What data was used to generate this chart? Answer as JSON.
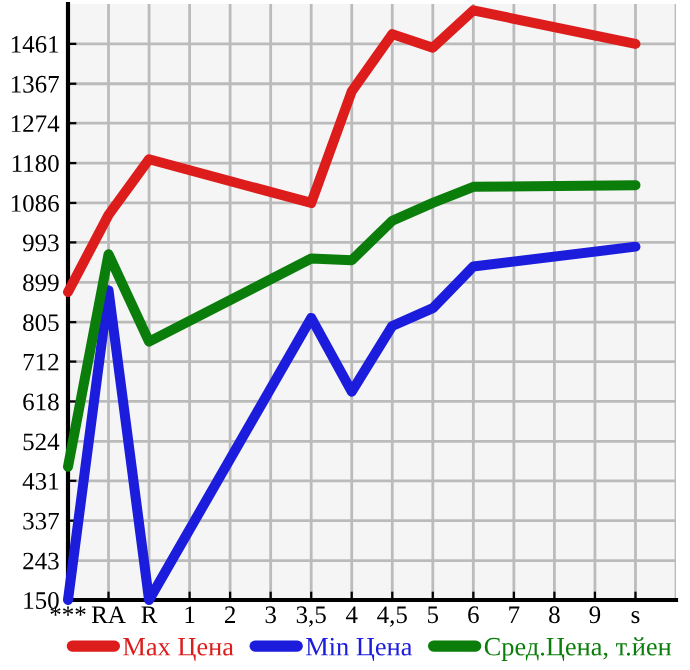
{
  "chart_data": {
    "type": "line",
    "categories": [
      "***",
      "RA",
      "R",
      "1",
      "2",
      "3",
      "3,5",
      "4",
      "4,5",
      "5",
      "6",
      "7",
      "8",
      "9",
      "s"
    ],
    "series": [
      {
        "name": "Max Цена",
        "color": "#dd1c1c",
        "values": [
          876,
          1058,
          1189,
          null,
          null,
          null,
          1086,
          1349,
          1484,
          1452,
          1540,
          null,
          null,
          null,
          1461
        ]
      },
      {
        "name": "Min Цена",
        "color": "#1c1cdd",
        "values": [
          150,
          880,
          150,
          null,
          null,
          null,
          815,
          641,
          796,
          838,
          936,
          null,
          null,
          null,
          983
        ]
      },
      {
        "name": "Сред.Цена, т.йен",
        "color": "#0a7d0a",
        "values": [
          464,
          965,
          759,
          null,
          null,
          null,
          955,
          951,
          1044,
          1086,
          1124,
          null,
          null,
          null,
          1128
        ]
      }
    ],
    "ylim": [
      150,
      1555
    ],
    "yticks": [
      150,
      243,
      337,
      431,
      524,
      618,
      712,
      805,
      899,
      993,
      1086,
      1180,
      1274,
      1367,
      1461
    ],
    "grid": true,
    "legend": "bottom",
    "marker": "none",
    "line_style": "solid"
  }
}
